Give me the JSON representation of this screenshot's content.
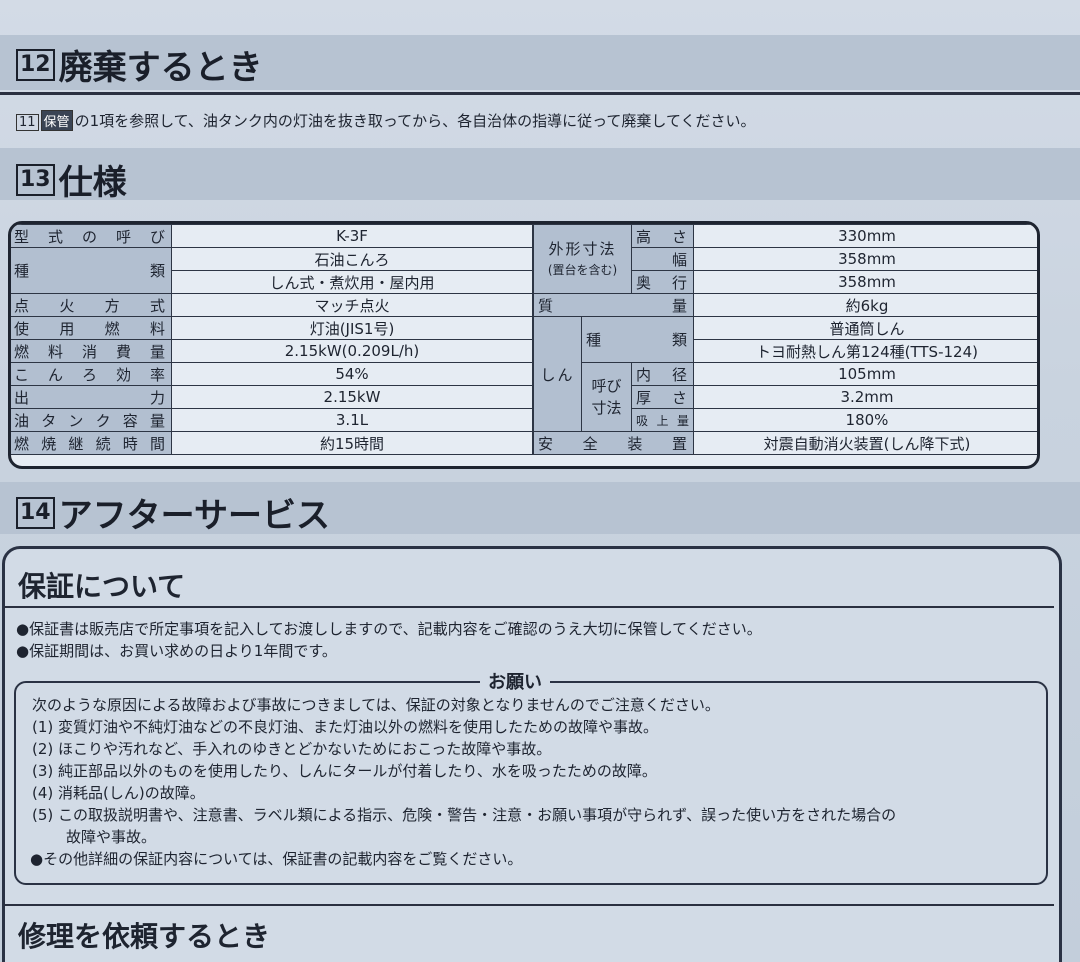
{
  "sections": {
    "disposal": {
      "number": "12",
      "title": "廃棄するとき",
      "ref_num": "11",
      "ref_tag": "保管",
      "text": "の1項を参照して、油タンク内の灯油を抜き取ってから、各自治体の指導に従って廃棄してください。"
    },
    "specs": {
      "number": "13",
      "title": "仕様"
    },
    "after": {
      "number": "14",
      "title": "アフターサービス"
    }
  },
  "spec_table": {
    "left": [
      {
        "label": "型式の呼び",
        "value": "K-3F"
      },
      {
        "label": "種類",
        "value": "石油こんろ",
        "value2": "しん式・煮炊用・屋内用"
      },
      {
        "label": "点火方式",
        "value": "マッチ点火"
      },
      {
        "label": "使用燃料",
        "value": "灯油(JIS1号)"
      },
      {
        "label": "燃料消費量",
        "value": "2.15kW(0.209L/h)"
      },
      {
        "label": "こんろ効率",
        "value": "54%"
      },
      {
        "label": "出力",
        "value": "2.15kW"
      },
      {
        "label": "油タンク容量",
        "value": "3.1L"
      },
      {
        "label": "燃焼継続時間",
        "value": "約15時間"
      }
    ],
    "right": {
      "dims_label": "外形寸法",
      "dims_sub": "(置台を含む)",
      "height": {
        "label": "高さ",
        "value": "330mm"
      },
      "width": {
        "label": "幅",
        "value": "358mm"
      },
      "depth": {
        "label": "奥行",
        "value": "358mm"
      },
      "mass": {
        "label": "質量",
        "value": "約6kg"
      },
      "wick_label": "しん",
      "wick_type": {
        "label": "種類",
        "value": "普通筒しん",
        "value2": "トヨ耐熱しん第124種(TTS-124)"
      },
      "wick_dims_label": "呼び寸法",
      "inner": {
        "label": "内径",
        "value": "105mm"
      },
      "thick": {
        "label": "厚さ",
        "value": "3.2mm"
      },
      "absorb": {
        "label": "吸上量",
        "value": "180%"
      },
      "safety": {
        "label": "安全装置",
        "value": "対震自動消火装置(しん降下式)"
      }
    }
  },
  "warranty": {
    "title": "保証について",
    "bullets": [
      "●保証書は販売店で所定事項を記入してお渡ししますので、記載内容をご確認のうえ大切に保管してください。",
      "●保証期間は、お買い求めの日より1年間です。"
    ],
    "request_title": "お願い",
    "request_intro": "次のような原因による故障および事故につきましては、保証の対象となりませんのでご注意ください。",
    "items": [
      "(1) 変質灯油や不純灯油などの不良灯油、また灯油以外の燃料を使用したための故障や事故。",
      "(2) ほこりや汚れなど、手入れのゆきとどかないためにおこった故障や事故。",
      "(3) 純正部品以外のものを使用したり、しんにタールが付着したり、水を吸ったための故障。",
      "(4) 消耗品(しん)の故障。",
      "(5) この取扱説明書や、注意書、ラベル類による指示、危険・警告・注意・お願い事項が守られず、誤った使い方をされた場合の",
      "故障や事故。"
    ],
    "other": "●その他詳細の保証内容については、保証書の記載内容をご覧ください。"
  },
  "repair": {
    "title": "修理を依頼するとき"
  }
}
